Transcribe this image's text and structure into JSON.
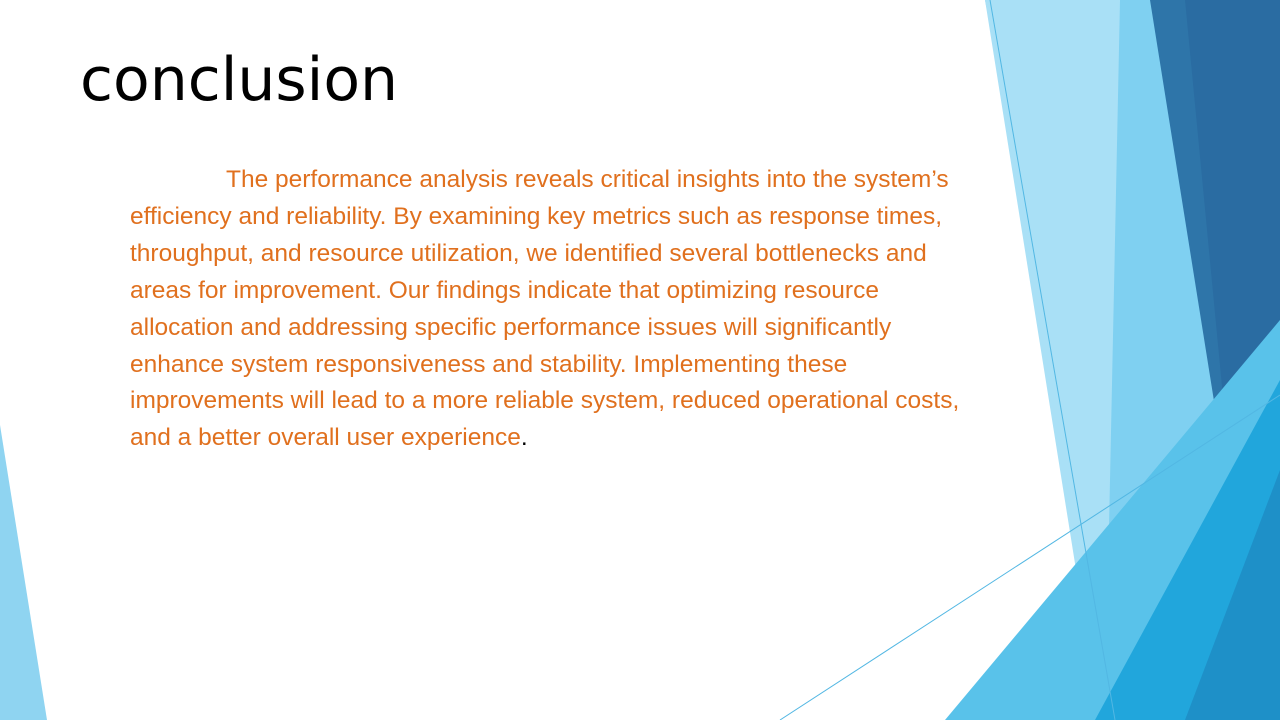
{
  "slide": {
    "title": "conclusion",
    "body": "The performance analysis reveals critical insights into the system’s efficiency and reliability. By examining key metrics such as response times, throughput, and resource utilization, we identified several bottlenecks and areas for improvement. Our findings indicate that optimizing resource allocation and addressing specific performance issues will significantly enhance system responsiveness and stability. Implementing these improvements will lead to a more reliable system, reduced operational costs, and a better overall user experience",
    "final_punctuation": "."
  },
  "colors": {
    "body_text": "#e0701e",
    "title_text": "#000000",
    "accent_light": "#8dd3f0",
    "accent_mid": "#3fb6e8",
    "accent_dark": "#2a6fa5"
  }
}
